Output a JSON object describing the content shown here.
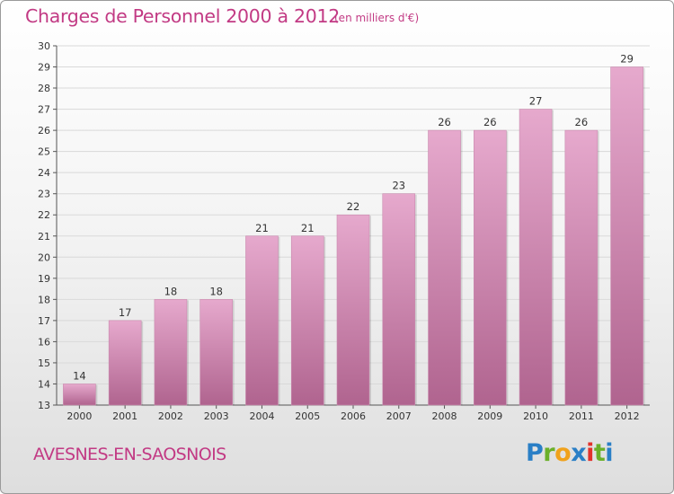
{
  "header": {
    "title": "Charges de Personnel 2000 à 2012",
    "subtitle": "(en milliers d'€)"
  },
  "footer": {
    "commune": "AVESNES-EN-SAOSNOIS",
    "logo_letters": [
      "P",
      "r",
      "o",
      "x",
      "i",
      "t",
      "i"
    ]
  },
  "colors": {
    "title": "#c23a84",
    "bar_top": "#e6a9cd",
    "bar_bottom": "#b0648f",
    "grid": "#d9d9d9",
    "logo": [
      "#2a7fc6",
      "#6bb02a",
      "#f0a21c",
      "#2a7fc6",
      "#e2322b",
      "#6bb02a",
      "#2a7fc6"
    ]
  },
  "chart_data": {
    "type": "bar",
    "title": "Charges de Personnel 2000 à 2012",
    "subtitle": "(en milliers d'€)",
    "categories": [
      "2000",
      "2001",
      "2002",
      "2003",
      "2004",
      "2005",
      "2006",
      "2007",
      "2008",
      "2009",
      "2010",
      "2011",
      "2012"
    ],
    "values": [
      14,
      17,
      18,
      18,
      21,
      21,
      22,
      23,
      26,
      26,
      27,
      26,
      29
    ],
    "ylim": [
      13,
      30
    ],
    "yticks": [
      13,
      14,
      15,
      16,
      17,
      18,
      19,
      20,
      21,
      22,
      23,
      24,
      25,
      26,
      27,
      28,
      29,
      30
    ],
    "grid": true
  }
}
